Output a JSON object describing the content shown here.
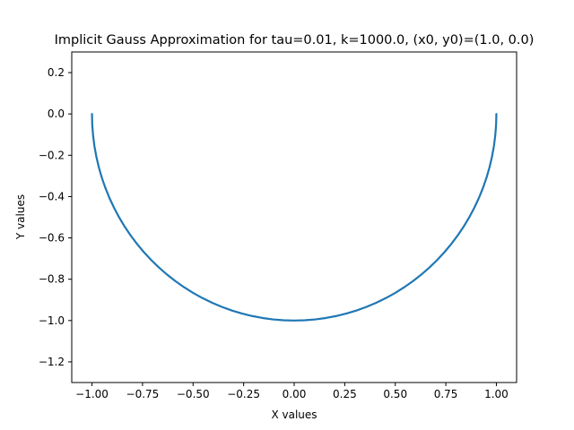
{
  "chart_data": {
    "type": "line",
    "title": "Implicit Gauss Approximation for tau=0.01, k=1000.0, (x0, y0)=(1.0, 0.0)",
    "xlabel": "X values",
    "ylabel": "Y values",
    "xlim": [
      -1.1,
      1.1
    ],
    "ylim": [
      -1.3,
      0.3
    ],
    "grid": false,
    "legend": "none",
    "line_color": "#1f77b4",
    "x_ticks": [
      {
        "value": -1.0,
        "label": "−1.00"
      },
      {
        "value": -0.75,
        "label": "−0.75"
      },
      {
        "value": -0.5,
        "label": "−0.50"
      },
      {
        "value": -0.25,
        "label": "−0.25"
      },
      {
        "value": 0.0,
        "label": "0.00"
      },
      {
        "value": 0.25,
        "label": "0.25"
      },
      {
        "value": 0.5,
        "label": "0.50"
      },
      {
        "value": 0.75,
        "label": "0.75"
      },
      {
        "value": 1.0,
        "label": "1.00"
      }
    ],
    "y_ticks": [
      {
        "value": 0.2,
        "label": "0.2"
      },
      {
        "value": 0.0,
        "label": "0.0"
      },
      {
        "value": -0.2,
        "label": "−0.2"
      },
      {
        "value": -0.4,
        "label": "−0.4"
      },
      {
        "value": -0.6,
        "label": "−0.6"
      },
      {
        "value": -0.8,
        "label": "−0.8"
      },
      {
        "value": -1.0,
        "label": "−1.0"
      },
      {
        "value": -1.2,
        "label": "−1.2"
      }
    ],
    "series": [
      {
        "x": [
          1.0,
          0.9986,
          0.9945,
          0.9877,
          0.9781,
          0.9659,
          0.9511,
          0.9336,
          0.9135,
          0.891,
          0.866,
          0.8387,
          0.809,
          0.7771,
          0.7431,
          0.7071,
          0.6691,
          0.6293,
          0.5878,
          0.5446,
          0.5,
          0.454,
          0.4067,
          0.3584,
          0.309,
          0.2588,
          0.2079,
          0.1564,
          0.1045,
          0.0523,
          0.0,
          -0.0523,
          -0.1045,
          -0.1564,
          -0.2079,
          -0.2588,
          -0.309,
          -0.3584,
          -0.4067,
          -0.454,
          -0.5,
          -0.5446,
          -0.5878,
          -0.6293,
          -0.6691,
          -0.7071,
          -0.7431,
          -0.7771,
          -0.809,
          -0.8387,
          -0.866,
          -0.891,
          -0.9135,
          -0.9336,
          -0.9511,
          -0.9659,
          -0.9781,
          -0.9877,
          -0.9945,
          -0.9986,
          -1.0
        ],
        "y": [
          0.0,
          -0.0523,
          -0.1045,
          -0.1564,
          -0.2079,
          -0.2588,
          -0.309,
          -0.3584,
          -0.4067,
          -0.454,
          -0.5,
          -0.5446,
          -0.5878,
          -0.6293,
          -0.6691,
          -0.7071,
          -0.7431,
          -0.7771,
          -0.809,
          -0.8387,
          -0.866,
          -0.891,
          -0.9135,
          -0.9336,
          -0.9511,
          -0.9659,
          -0.9781,
          -0.9877,
          -0.9945,
          -0.9986,
          -1.0,
          -0.9986,
          -0.9945,
          -0.9877,
          -0.9781,
          -0.9659,
          -0.9511,
          -0.9336,
          -0.9135,
          -0.891,
          -0.866,
          -0.8387,
          -0.809,
          -0.7771,
          -0.7431,
          -0.7071,
          -0.6691,
          -0.6293,
          -0.5878,
          -0.5446,
          -0.5,
          -0.454,
          -0.4067,
          -0.3584,
          -0.309,
          -0.2588,
          -0.2079,
          -0.1564,
          -0.1045,
          -0.0523,
          0.0
        ]
      }
    ]
  }
}
